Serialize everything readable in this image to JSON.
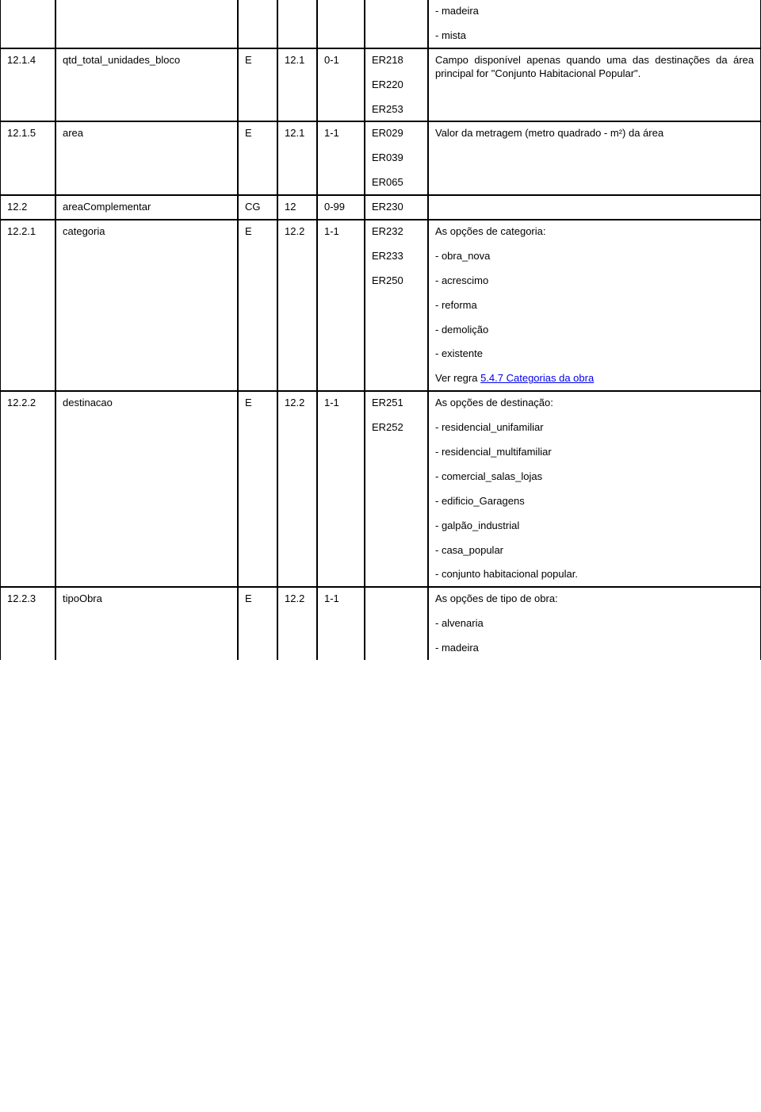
{
  "rows": [
    {
      "c1": "",
      "c2": "",
      "c3": "",
      "c4": "",
      "c5": "",
      "c6_lines": [],
      "c7_lines": [
        "- madeira",
        "- mista"
      ],
      "c7_justify": false,
      "nb_top": true
    },
    {
      "c1": "12.1.4",
      "c2": "qtd_total_unidades_bloco",
      "c3": "E",
      "c4": "12.1",
      "c5": "0-1",
      "c6_lines": [
        "ER218",
        "ER220",
        "ER253"
      ],
      "c7_lines": [
        "Campo disponível apenas quando uma das destinações da área principal for \"Conjunto Habitacional Popular\"."
      ],
      "c7_justify": true
    },
    {
      "c1": "12.1.5",
      "c2": "area",
      "c3": "E",
      "c4": "12.1",
      "c5": "1-1",
      "c6_lines": [
        "ER029",
        "ER039",
        "ER065"
      ],
      "c7_lines": [
        "Valor da metragem (metro quadrado - m²) da área"
      ],
      "c7_justify": true
    },
    {
      "c1": "12.2",
      "c2": "areaComplementar",
      "c3": "CG",
      "c4": "12",
      "c5": "0-99",
      "c6_lines": [
        "ER230"
      ],
      "c7_lines": [],
      "c7_justify": false
    },
    {
      "c1": "12.2.1",
      "c2": "categoria",
      "c3": "E",
      "c4": "12.2",
      "c5": "1-1",
      "c6_lines": [
        "ER232",
        "ER233",
        "ER250"
      ],
      "c7_lines": [
        "As opções de categoria:",
        "- obra_nova",
        "- acrescimo",
        "- reforma",
        "- demolição",
        "- existente"
      ],
      "c7_link_prefix": "Ver regra ",
      "c7_link_text": "5.4.7 Categorias da obra",
      "c7_justify": false
    },
    {
      "c1": "12.2.2",
      "c2": "destinacao",
      "c3": "E",
      "c4": "12.2",
      "c5": "1-1",
      "c6_lines": [
        "ER251",
        "ER252"
      ],
      "c7_lines": [
        "As opções de destinação:",
        "- residencial_unifamiliar",
        "- residencial_multifamiliar",
        "- comercial_salas_lojas",
        "- edificio_Garagens",
        "- galpão_industrial",
        "- casa_popular",
        "- conjunto habitacional popular."
      ],
      "c7_justify_indices": [
        7
      ],
      "c7_justify": false
    },
    {
      "c1": "12.2.3",
      "c2": "tipoObra",
      "c3": "E",
      "c4": "12.2",
      "c5": "1-1",
      "c6_lines": [],
      "c7_lines": [
        "As opções de tipo de obra:",
        "- alvenaria",
        "- madeira"
      ],
      "c7_justify": false,
      "nb_bottom": true
    }
  ]
}
